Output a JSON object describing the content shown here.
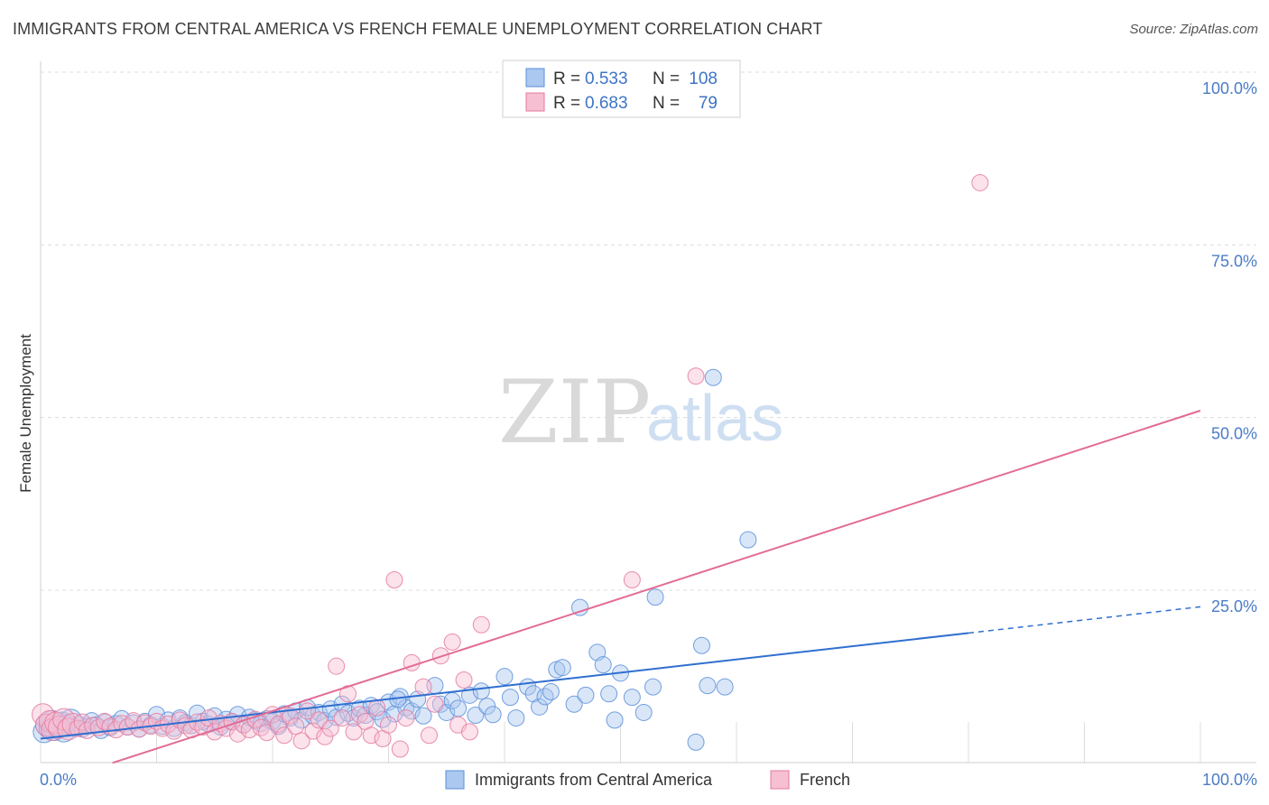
{
  "title": "IMMIGRANTS FROM CENTRAL AMERICA VS FRENCH FEMALE UNEMPLOYMENT CORRELATION CHART",
  "source": "Source: ZipAtlas.com",
  "watermark": {
    "zip": "ZIP",
    "atlas": "atlas"
  },
  "colors": {
    "blue": "#5b8fd9",
    "blue_fill": "#aac8f0",
    "blue_line": "#2f6fd0",
    "pink": "#e57aa0",
    "pink_fill": "#f6bfd2",
    "pink_line": "#e26b93",
    "tick": "#4a7cc7",
    "grid": "#d5d5d5"
  },
  "legend": {
    "rows": [
      {
        "r_label": "R =",
        "r_value": "0.533",
        "n_label": "N =",
        "n_value": "108"
      },
      {
        "r_label": "R =",
        "r_value": "0.683",
        "n_label": "N =",
        "n_value": "79"
      }
    ]
  },
  "bottom_legend": [
    "Immigrants from Central America",
    "French"
  ],
  "chart_data": {
    "type": "scatter",
    "title": "IMMIGRANTS FROM CENTRAL AMERICA VS FRENCH FEMALE UNEMPLOYMENT CORRELATION CHART",
    "xlabel": "",
    "ylabel": "Female Unemployment",
    "xlim": [
      0,
      100
    ],
    "ylim": [
      0,
      100
    ],
    "x_tick_labels": [
      "0.0%",
      "100.0%"
    ],
    "y_tick_labels": [
      "100.0%",
      "75.0%",
      "50.0%",
      "25.0%"
    ],
    "y_ticks": [
      100,
      75,
      50,
      25
    ],
    "grid": true,
    "legend_position": "top-center",
    "series": [
      {
        "name": "Immigrants from Central America",
        "color": "#5b8fd9",
        "r": 0.533,
        "n": 108,
        "trend": {
          "x0": 0,
          "y0": 3.5,
          "x1": 80,
          "y1": 18.8,
          "dashed_to_x": 100,
          "dashed_to_y": 22.6
        },
        "points": [
          [
            0.3,
            4.5
          ],
          [
            0.5,
            5.5
          ],
          [
            0.8,
            5.0
          ],
          [
            1.0,
            6.0
          ],
          [
            1.2,
            4.8
          ],
          [
            1.5,
            5.2
          ],
          [
            1.8,
            5.8
          ],
          [
            2.0,
            4.6
          ],
          [
            2.3,
            5.4
          ],
          [
            2.6,
            6.2
          ],
          [
            3.0,
            5.0
          ],
          [
            3.3,
            5.6
          ],
          [
            3.6,
            4.9
          ],
          [
            4.0,
            5.3
          ],
          [
            4.4,
            6.1
          ],
          [
            4.8,
            5.5
          ],
          [
            5.2,
            4.7
          ],
          [
            5.6,
            5.9
          ],
          [
            6.0,
            5.1
          ],
          [
            6.5,
            5.7
          ],
          [
            7.0,
            6.4
          ],
          [
            7.5,
            5.2
          ],
          [
            8.0,
            5.8
          ],
          [
            8.5,
            4.9
          ],
          [
            9.0,
            6.0
          ],
          [
            9.5,
            5.5
          ],
          [
            10.0,
            7.0
          ],
          [
            10.5,
            5.3
          ],
          [
            11.0,
            6.2
          ],
          [
            11.5,
            5.0
          ],
          [
            12.0,
            6.5
          ],
          [
            12.5,
            5.8
          ],
          [
            13.0,
            5.4
          ],
          [
            13.5,
            7.2
          ],
          [
            14.0,
            6.0
          ],
          [
            14.5,
            5.6
          ],
          [
            15.0,
            6.8
          ],
          [
            15.5,
            5.2
          ],
          [
            16.0,
            6.3
          ],
          [
            16.5,
            5.9
          ],
          [
            17.0,
            7.0
          ],
          [
            17.5,
            5.5
          ],
          [
            18.0,
            6.6
          ],
          [
            18.5,
            6.1
          ],
          [
            19.0,
            5.7
          ],
          [
            19.5,
            6.4
          ],
          [
            20.0,
            6.0
          ],
          [
            20.5,
            5.3
          ],
          [
            21.0,
            7.1
          ],
          [
            21.5,
            6.5
          ],
          [
            22.0,
            7.5
          ],
          [
            22.5,
            6.2
          ],
          [
            23.0,
            8.0
          ],
          [
            23.5,
            6.8
          ],
          [
            24.0,
            7.3
          ],
          [
            24.5,
            6.1
          ],
          [
            25.0,
            7.8
          ],
          [
            25.5,
            6.6
          ],
          [
            26.0,
            8.5
          ],
          [
            26.5,
            7.2
          ],
          [
            27.0,
            6.5
          ],
          [
            27.5,
            7.9
          ],
          [
            28.0,
            6.9
          ],
          [
            28.5,
            8.3
          ],
          [
            29.0,
            7.4
          ],
          [
            29.5,
            6.3
          ],
          [
            30.0,
            8.8
          ],
          [
            30.5,
            7.1
          ],
          [
            31.0,
            9.6
          ],
          [
            31.5,
            8.0
          ],
          [
            32.0,
            7.5
          ],
          [
            32.5,
            9.2
          ],
          [
            33.0,
            6.8
          ],
          [
            34.0,
            11.2
          ],
          [
            34.5,
            8.5
          ],
          [
            35.0,
            7.3
          ],
          [
            35.5,
            9.0
          ],
          [
            36.0,
            7.9
          ],
          [
            37.0,
            9.8
          ],
          [
            37.5,
            6.9
          ],
          [
            38.0,
            10.4
          ],
          [
            38.5,
            8.2
          ],
          [
            39.0,
            7.0
          ],
          [
            40.0,
            12.5
          ],
          [
            40.5,
            9.5
          ],
          [
            41.0,
            6.5
          ],
          [
            42.0,
            11.0
          ],
          [
            42.5,
            10.0
          ],
          [
            43.0,
            8.1
          ],
          [
            43.5,
            9.6
          ],
          [
            44.0,
            10.3
          ],
          [
            44.5,
            13.5
          ],
          [
            45.0,
            13.8
          ],
          [
            46.0,
            8.5
          ],
          [
            46.5,
            22.5
          ],
          [
            47.0,
            9.8
          ],
          [
            48.0,
            16.0
          ],
          [
            48.5,
            14.2
          ],
          [
            49.0,
            10.0
          ],
          [
            49.5,
            6.2
          ],
          [
            50.0,
            13.0
          ],
          [
            51.0,
            9.5
          ],
          [
            52.0,
            7.3
          ],
          [
            53.0,
            24.0
          ],
          [
            56.5,
            3.0
          ],
          [
            57.0,
            17.0
          ],
          [
            57.5,
            11.2
          ],
          [
            58.0,
            55.8
          ],
          [
            59.0,
            11.0
          ],
          [
            61.0,
            32.3
          ],
          [
            52.8,
            11.0
          ],
          [
            30.8,
            9.2
          ]
        ]
      },
      {
        "name": "French",
        "color": "#e57aa0",
        "r": 0.683,
        "n": 79,
        "trend": {
          "x0": 6.2,
          "y0": 0,
          "x1": 100,
          "y1": 51.0
        },
        "points": [
          [
            0.2,
            7.0
          ],
          [
            0.5,
            5.5
          ],
          [
            0.8,
            6.0
          ],
          [
            1.0,
            4.8
          ],
          [
            1.3,
            5.8
          ],
          [
            1.6,
            5.2
          ],
          [
            2.0,
            6.3
          ],
          [
            2.4,
            4.9
          ],
          [
            2.8,
            5.6
          ],
          [
            3.2,
            5.0
          ],
          [
            3.6,
            5.9
          ],
          [
            4.0,
            4.7
          ],
          [
            4.5,
            5.4
          ],
          [
            5.0,
            5.1
          ],
          [
            5.5,
            6.0
          ],
          [
            6.0,
            5.3
          ],
          [
            6.5,
            4.8
          ],
          [
            7.0,
            5.7
          ],
          [
            7.5,
            5.2
          ],
          [
            8.0,
            6.1
          ],
          [
            8.5,
            4.9
          ],
          [
            9.0,
            5.8
          ],
          [
            9.5,
            5.3
          ],
          [
            10.0,
            6.0
          ],
          [
            10.5,
            5.0
          ],
          [
            11.0,
            5.6
          ],
          [
            11.5,
            4.6
          ],
          [
            12.0,
            6.2
          ],
          [
            12.5,
            5.4
          ],
          [
            13.0,
            4.8
          ],
          [
            13.5,
            5.9
          ],
          [
            14.0,
            5.2
          ],
          [
            14.5,
            6.5
          ],
          [
            15.0,
            4.5
          ],
          [
            15.5,
            5.7
          ],
          [
            16.0,
            5.0
          ],
          [
            16.5,
            6.0
          ],
          [
            17.0,
            4.2
          ],
          [
            17.5,
            5.5
          ],
          [
            18.0,
            4.8
          ],
          [
            18.5,
            6.3
          ],
          [
            19.0,
            5.1
          ],
          [
            19.5,
            4.4
          ],
          [
            20.0,
            7.0
          ],
          [
            20.5,
            5.6
          ],
          [
            21.0,
            4.0
          ],
          [
            21.5,
            6.8
          ],
          [
            22.0,
            5.3
          ],
          [
            22.5,
            3.2
          ],
          [
            23.0,
            7.5
          ],
          [
            23.5,
            4.6
          ],
          [
            24.0,
            6.2
          ],
          [
            24.5,
            3.8
          ],
          [
            25.0,
            5.0
          ],
          [
            25.5,
            14.0
          ],
          [
            26.0,
            6.5
          ],
          [
            26.5,
            10.0
          ],
          [
            27.0,
            4.5
          ],
          [
            27.5,
            7.0
          ],
          [
            28.0,
            6.0
          ],
          [
            28.5,
            4.0
          ],
          [
            29.0,
            8.0
          ],
          [
            29.5,
            3.5
          ],
          [
            30.0,
            5.5
          ],
          [
            30.5,
            26.5
          ],
          [
            31.0,
            2.0
          ],
          [
            31.5,
            6.5
          ],
          [
            32.0,
            14.5
          ],
          [
            33.0,
            11.0
          ],
          [
            33.5,
            4.0
          ],
          [
            34.0,
            8.5
          ],
          [
            34.5,
            15.5
          ],
          [
            35.5,
            17.5
          ],
          [
            36.0,
            5.5
          ],
          [
            36.5,
            12.0
          ],
          [
            37.0,
            4.5
          ],
          [
            38.0,
            20.0
          ],
          [
            51.0,
            26.5
          ],
          [
            56.5,
            56.0
          ],
          [
            81.0,
            84.0
          ]
        ]
      }
    ]
  }
}
